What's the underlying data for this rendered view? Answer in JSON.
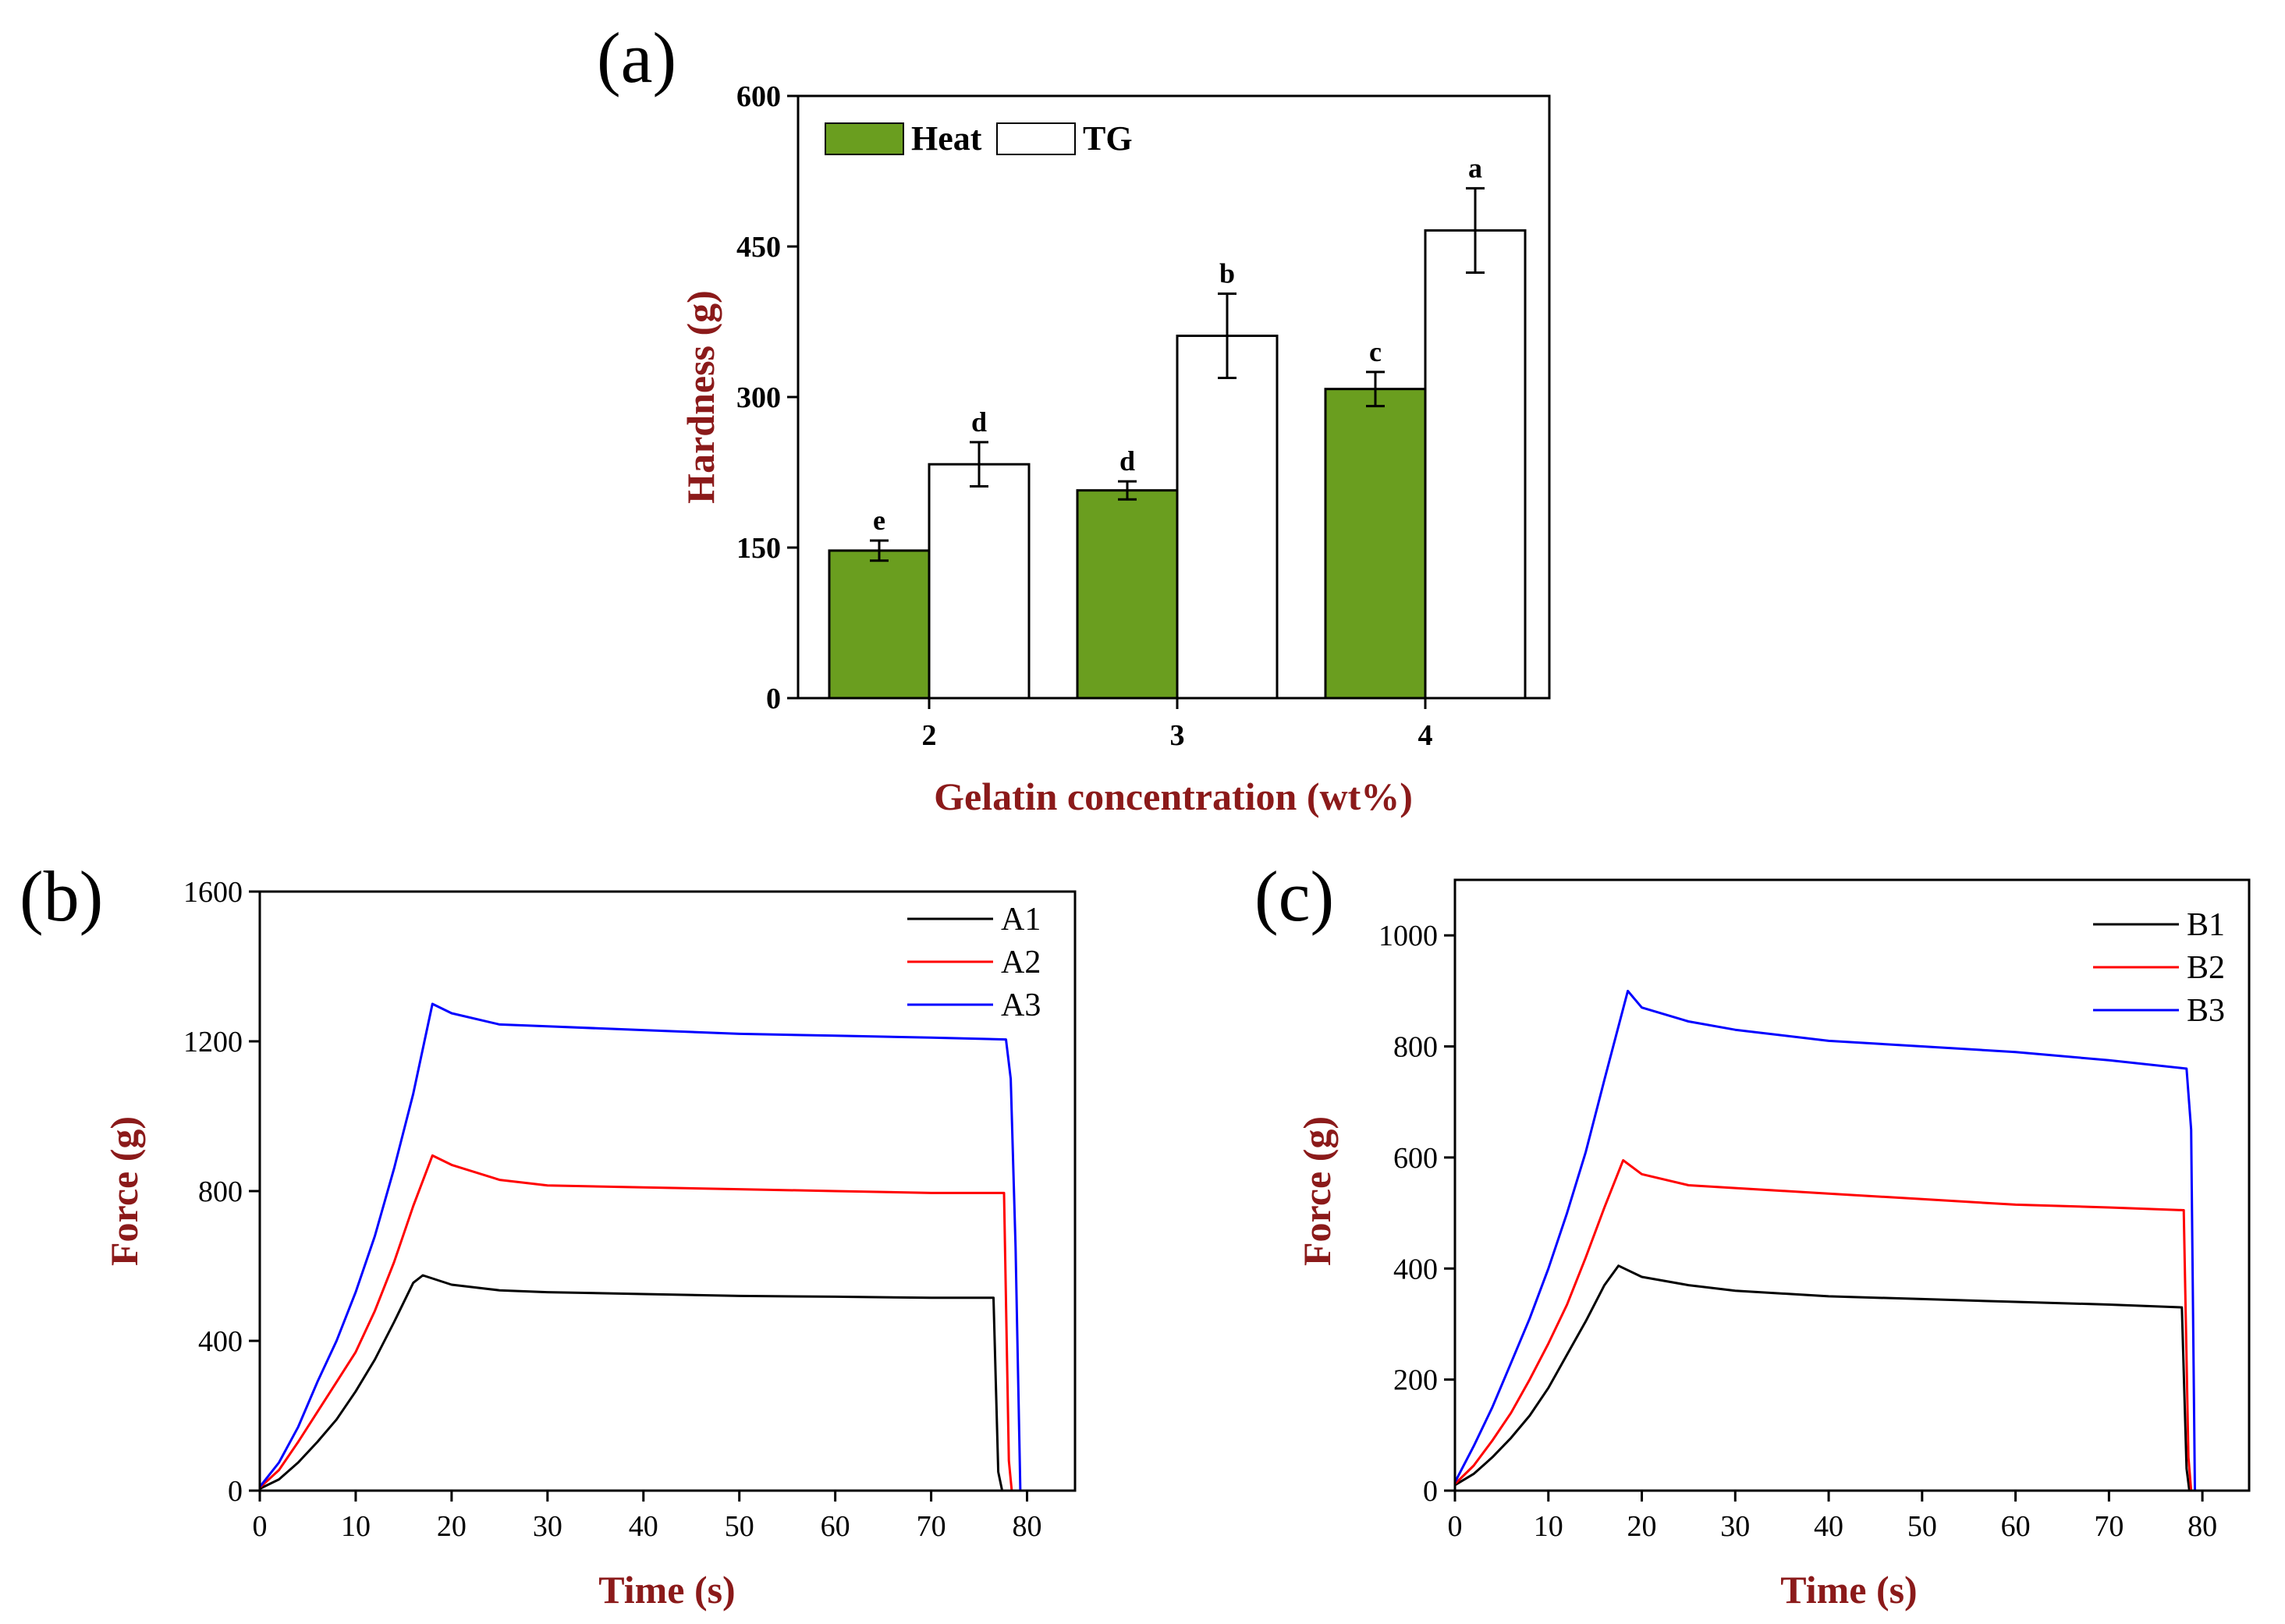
{
  "colors": {
    "heat": "#6a9e1f",
    "tg": "#ffffff",
    "axis": "#000000",
    "label": "#8b1a1a",
    "A1": "#000000",
    "A2": "#ff0000",
    "A3": "#0000ff",
    "B1": "#000000",
    "B2": "#ff0000",
    "B3": "#0000ff"
  },
  "chart_data": [
    {
      "type": "bar",
      "panel_label": "(a)",
      "xlabel": "Gelatin concentration (wt%)",
      "ylabel": "Hardness (g)",
      "categories": [
        "2",
        "3",
        "4"
      ],
      "ylim": [
        0,
        600
      ],
      "yticks": [
        0,
        150,
        300,
        450,
        600
      ],
      "series": [
        {
          "name": "Heat",
          "values": [
            147,
            207,
            308
          ],
          "errors": [
            10,
            9,
            17
          ],
          "letters": [
            "e",
            "d",
            "c"
          ]
        },
        {
          "name": "TG",
          "values": [
            233,
            361,
            466
          ],
          "errors": [
            22,
            42,
            42
          ],
          "letters": [
            "d",
            "b",
            "a"
          ]
        }
      ],
      "legend": "top-left, horizontal"
    },
    {
      "type": "line",
      "panel_label": "(b)",
      "xlabel": "Time (s)",
      "ylabel": "Force (g)",
      "xlim": [
        0,
        85
      ],
      "ylim": [
        0,
        1600
      ],
      "xticks": [
        0,
        10,
        20,
        30,
        40,
        50,
        60,
        70,
        80
      ],
      "yticks": [
        0,
        400,
        800,
        1200,
        1600
      ],
      "legend": "top-right",
      "series": [
        {
          "name": "A1",
          "x": [
            0,
            2,
            4,
            6,
            8,
            10,
            12,
            14,
            16,
            17,
            20,
            25,
            30,
            40,
            50,
            60,
            70,
            76.5,
            77.0,
            77.4
          ],
          "y": [
            5,
            30,
            75,
            130,
            190,
            265,
            350,
            450,
            555,
            575,
            550,
            535,
            530,
            525,
            520,
            518,
            515,
            515,
            50,
            0
          ]
        },
        {
          "name": "A2",
          "x": [
            0,
            2,
            4,
            6,
            8,
            10,
            12,
            14,
            16,
            18,
            20,
            25,
            30,
            40,
            50,
            60,
            70,
            77.6,
            78.1,
            78.4
          ],
          "y": [
            8,
            55,
            130,
            210,
            290,
            370,
            480,
            610,
            760,
            895,
            870,
            830,
            815,
            810,
            805,
            800,
            795,
            795,
            80,
            0
          ]
        },
        {
          "name": "A3",
          "x": [
            0,
            2,
            4,
            6,
            8,
            10,
            12,
            14,
            16,
            18,
            20,
            25,
            30,
            40,
            50,
            60,
            70,
            77.8,
            78.3,
            78.8,
            79.3
          ],
          "y": [
            10,
            75,
            170,
            290,
            400,
            530,
            680,
            860,
            1060,
            1300,
            1275,
            1245,
            1240,
            1230,
            1220,
            1215,
            1210,
            1205,
            1100,
            650,
            0
          ]
        }
      ]
    },
    {
      "type": "line",
      "panel_label": "(c)",
      "xlabel": "Time (s)",
      "ylabel": "Force (g)",
      "xlim": [
        0,
        85
      ],
      "ylim": [
        0,
        1100
      ],
      "xticks": [
        0,
        10,
        20,
        30,
        40,
        50,
        60,
        70,
        80
      ],
      "yticks": [
        0,
        200,
        400,
        600,
        800,
        1000
      ],
      "legend": "top-right",
      "series": [
        {
          "name": "B1",
          "x": [
            0,
            2,
            4,
            6,
            8,
            10,
            12,
            14,
            16,
            17.5,
            20,
            25,
            30,
            40,
            50,
            60,
            70,
            77.8,
            78.3,
            78.6
          ],
          "y": [
            10,
            30,
            60,
            95,
            135,
            185,
            245,
            305,
            370,
            405,
            385,
            370,
            360,
            350,
            345,
            340,
            335,
            330,
            40,
            0
          ]
        },
        {
          "name": "B2",
          "x": [
            0,
            2,
            4,
            6,
            8,
            10,
            12,
            14,
            16,
            18,
            20,
            25,
            30,
            40,
            50,
            60,
            70,
            78.0,
            78.5,
            78.8
          ],
          "y": [
            12,
            45,
            90,
            140,
            200,
            265,
            335,
            420,
            510,
            595,
            570,
            550,
            545,
            535,
            525,
            515,
            510,
            505,
            60,
            0
          ]
        },
        {
          "name": "B3",
          "x": [
            0,
            2,
            4,
            6,
            8,
            10,
            12,
            14,
            16,
            18.5,
            20,
            25,
            30,
            40,
            50,
            60,
            70,
            78.3,
            78.8,
            79.2
          ],
          "y": [
            15,
            80,
            150,
            230,
            310,
            400,
            500,
            610,
            740,
            900,
            870,
            845,
            830,
            810,
            800,
            790,
            775,
            760,
            650,
            0
          ]
        }
      ]
    }
  ]
}
